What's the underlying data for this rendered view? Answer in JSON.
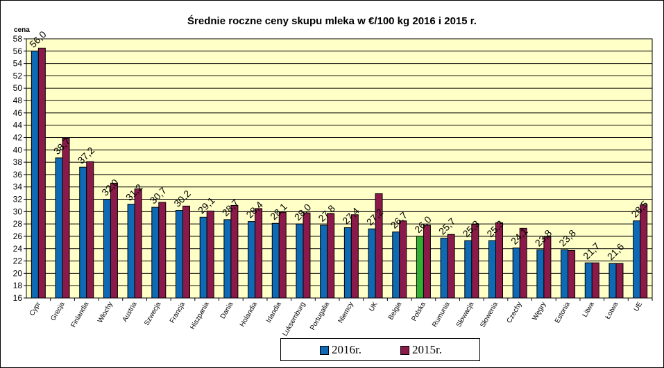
{
  "chart_data": {
    "type": "bar",
    "title": "Średnie roczne ceny skupu mleka  w €/100 kg  2016 i 2015 r.",
    "ylabel": "cena",
    "xlabel": "",
    "ylim": [
      16,
      58
    ],
    "ytick_step": 2,
    "grid": true,
    "legend_position": "bottom-center",
    "categories": [
      "Cypr",
      "Grecja",
      "Finlandia",
      "Włochy",
      "Austria",
      "Szwecja",
      "Francja",
      "Hiszpania",
      "Dania",
      "Holandia",
      "Irlandia",
      "Luksemburg",
      "Portugalia",
      "Niemcy",
      "UK",
      "Belgia",
      "Polska",
      "Rumunia",
      "Słowacja",
      "Słowenia",
      "Czechy",
      "Węgry",
      "Estonia",
      "Litwa",
      "Łotwa",
      "UE"
    ],
    "series": [
      {
        "name": "2016r.",
        "color": "#0E6AB5",
        "values": [
          56.0,
          38.7,
          37.2,
          32.0,
          31.2,
          30.7,
          30.2,
          29.1,
          28.7,
          28.4,
          28.1,
          28.0,
          27.8,
          27.4,
          27.2,
          26.7,
          26.0,
          25.7,
          25.3,
          25.3,
          24.1,
          23.8,
          23.8,
          21.7,
          21.6,
          28.5
        ],
        "labels": [
          "56,0",
          "38,7",
          "37,2",
          "32,0",
          "31,2",
          "30,7",
          "30,2",
          "29,1",
          "28,7",
          "28,4",
          "28,1",
          "28,0",
          "27,8",
          "27,4",
          "27,2",
          "26,7",
          "26,0",
          "25,7",
          "25,3",
          "25,3",
          "24,1",
          "23,8",
          "23,8",
          "21,7",
          "21,6",
          "28,5"
        ]
      },
      {
        "name": "2015r.",
        "color": "#8B1A4A",
        "values": [
          56.5,
          41.9,
          38.1,
          34.6,
          33.7,
          31.5,
          30.9,
          30.1,
          31.0,
          30.5,
          29.9,
          29.8,
          29.7,
          29.5,
          32.9,
          28.5,
          27.8,
          26.3,
          27.9,
          28.2,
          27.3,
          25.9,
          23.7,
          21.7,
          21.6,
          31.1
        ]
      }
    ],
    "highlight": {
      "category": "Polska",
      "color": "#32B032"
    },
    "plot_background": "#FFFFC8"
  }
}
